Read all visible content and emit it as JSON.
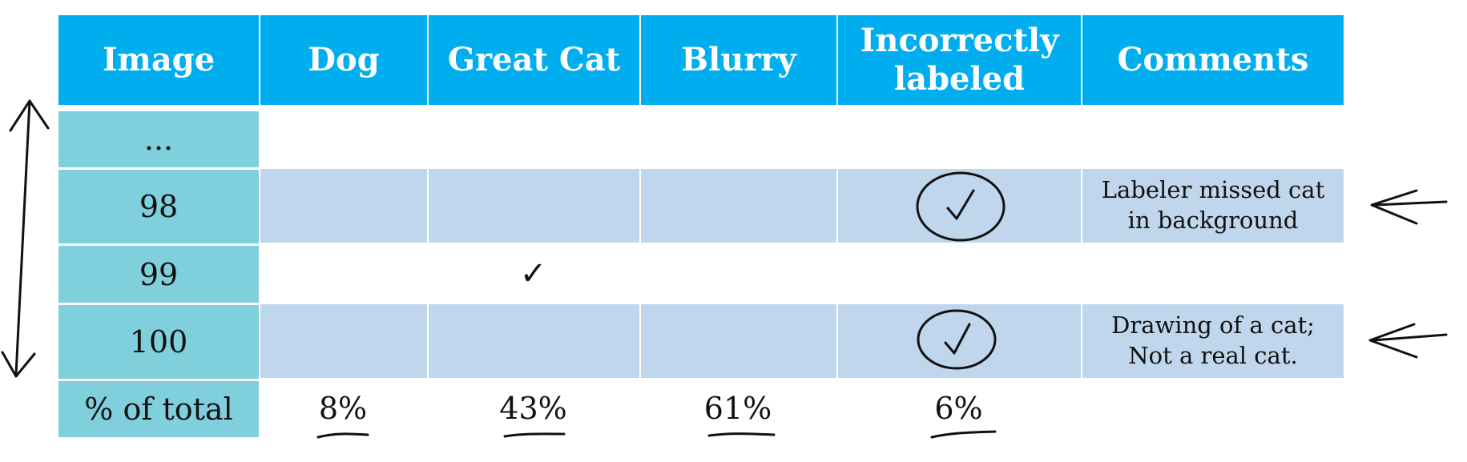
{
  "columns": [
    "Image",
    "Dog",
    "Great Cat",
    "Blurry",
    "Incorrectly labeled",
    "Comments"
  ],
  "rows": [
    {
      "image": "...",
      "comment": ""
    },
    {
      "image": "98",
      "comment_line1": "Labeler missed cat",
      "comment_line2": "in background"
    },
    {
      "image": "99",
      "great_cat_check": "✓"
    },
    {
      "image": "100",
      "comment_line1": "Drawing of a cat;",
      "comment_line2": "Not a real cat."
    }
  ],
  "totals": {
    "label": "% of total",
    "dog": "8%",
    "great_cat": "43%",
    "blurry": "61%",
    "incorrectly_labeled": "6%"
  },
  "colors": {
    "header": "#00aeef",
    "image_column": "#7fcfdc",
    "band": "#c0d6ec"
  }
}
